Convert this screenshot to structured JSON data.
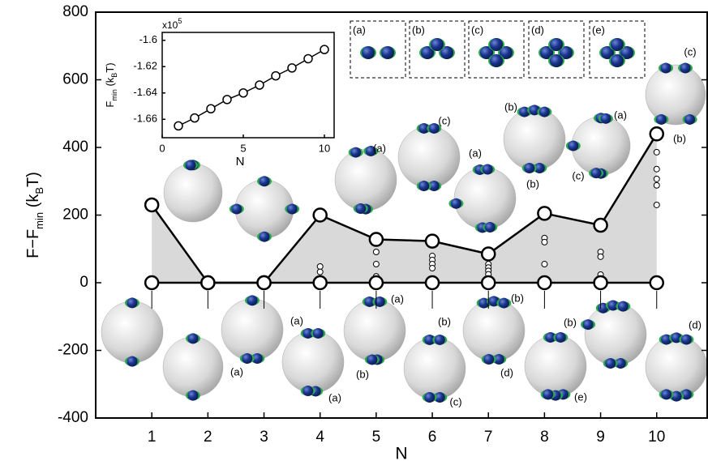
{
  "chart_data": [
    {
      "type": "line",
      "x_label": "N",
      "y_label_parts": [
        "F−F",
        "min",
        " (k",
        "B",
        "T)"
      ],
      "x": [
        1,
        2,
        3,
        4,
        5,
        6,
        7,
        8,
        9,
        10
      ],
      "series": [
        {
          "color": "#000000",
          "values": [
            230,
            0,
            0,
            200,
            128,
            123,
            85,
            205,
            170,
            440
          ]
        },
        {
          "color": "#000000",
          "values": [
            0,
            0,
            0,
            0,
            0,
            0,
            0,
            0,
            0,
            0
          ]
        }
      ],
      "fill_color": "#d9d9d9",
      "other_states": {
        "x": [
          4,
          4,
          5,
          5,
          5,
          6,
          6,
          6,
          6,
          7,
          7,
          7,
          7,
          8,
          8,
          8,
          9,
          9,
          9,
          10,
          10,
          10,
          10,
          10
        ],
        "values": [
          48,
          32,
          91,
          55,
          19,
          79,
          67,
          55,
          43,
          55,
          45,
          35,
          25,
          132,
          120,
          55,
          91,
          77,
          24,
          386,
          336,
          307,
          288,
          230
        ]
      },
      "xlim": [
        0,
        10.9
      ],
      "ylim": [
        -400,
        800
      ],
      "xticks": [
        1,
        2,
        3,
        4,
        5,
        6,
        7,
        8,
        9,
        10
      ],
      "yticks": [
        -400,
        -200,
        0,
        200,
        400,
        600,
        800
      ],
      "structure_labels": [
        "(a)",
        "(b)",
        "(c)",
        "(d)",
        "(e)"
      ]
    },
    {
      "type": "line",
      "x_label": "N",
      "y_label_parts": [
        "F",
        "min",
        " (k",
        "B",
        "T)"
      ],
      "multiplier_parts": [
        "x10",
        "5"
      ],
      "x": [
        1,
        2,
        3,
        4,
        5,
        6,
        7,
        8,
        9,
        10
      ],
      "series": [
        {
          "color": "#000000",
          "values": [
            -1.665,
            -1.659,
            -1.652,
            -1.645,
            -1.64,
            -1.634,
            -1.627,
            -1.621,
            -1.614,
            -1.607
          ]
        }
      ],
      "xlim": [
        0,
        10.6
      ],
      "ylim": [
        -1.674,
        -1.594
      ],
      "xticks": [
        0,
        5,
        10
      ],
      "yticks": [
        -1.6,
        -1.62,
        -1.64,
        -1.66
      ]
    }
  ]
}
